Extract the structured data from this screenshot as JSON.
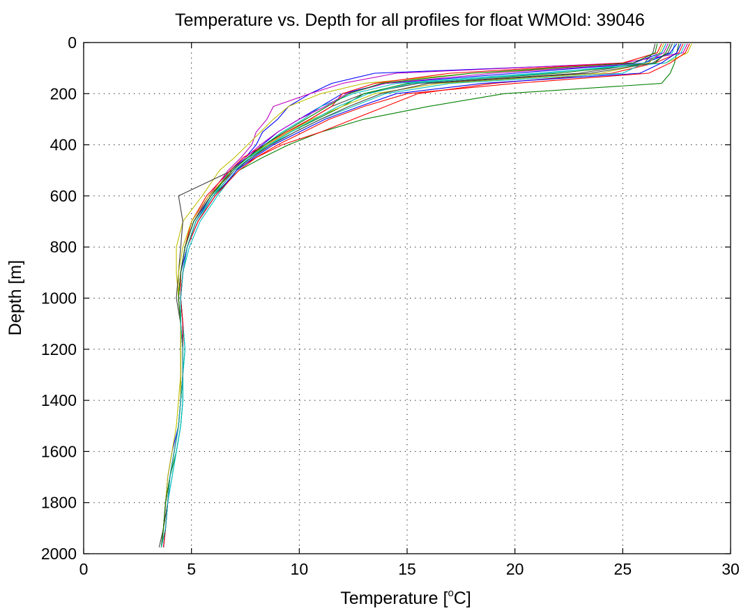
{
  "chart_data": {
    "type": "line",
    "title": "Temperature vs. Depth for all profiles for float WMOId: 39046",
    "xlabel": "Temperature [°C]",
    "xlabel_parts": {
      "main": "Temperature [",
      "superscript": "o",
      "unit": "C]"
    },
    "ylabel": "Depth [m]",
    "xlim": [
      0,
      30
    ],
    "ylim": [
      0,
      2000
    ],
    "y_reversed": true,
    "xticks": [
      0,
      5,
      10,
      15,
      20,
      25,
      30
    ],
    "yticks": [
      0,
      200,
      400,
      600,
      800,
      1000,
      1200,
      1400,
      1600,
      1800,
      2000
    ],
    "grid": true,
    "series_depths": [
      5,
      40,
      80,
      120,
      160,
      200,
      250,
      300,
      350,
      400,
      450,
      500,
      600,
      700,
      800,
      900,
      1000,
      1100,
      1200,
      1300,
      1400,
      1500,
      1600,
      1700,
      1800,
      1900,
      1975
    ],
    "series": [
      {
        "color": "#0000ff",
        "values": [
          27.0,
          26.8,
          25.5,
          13.5,
          11.5,
          10.5,
          9.5,
          9.0,
          8.3,
          8.0,
          7.5,
          6.8,
          5.9,
          5.2,
          4.8,
          4.5,
          4.4,
          4.5,
          4.6,
          4.6,
          4.5,
          4.4,
          4.1,
          3.9,
          3.8,
          3.7,
          3.6
        ]
      },
      {
        "color": "#008000",
        "values": [
          27.6,
          27.5,
          27.4,
          27.2,
          26.8,
          19.5,
          16.0,
          13.0,
          11.0,
          9.5,
          8.3,
          7.2,
          6.0,
          5.2,
          4.8,
          4.6,
          4.5,
          4.6,
          4.7,
          4.6,
          4.6,
          4.5,
          4.3,
          4.0,
          3.9,
          3.8,
          3.7
        ]
      },
      {
        "color": "#ff0000",
        "values": [
          27.8,
          27.6,
          26.5,
          24.5,
          19.0,
          15.5,
          14.0,
          12.5,
          11.0,
          9.2,
          8.0,
          7.0,
          5.8,
          5.0,
          4.7,
          4.5,
          4.5,
          4.6,
          4.6,
          4.6,
          4.5,
          4.4,
          4.2,
          4.0,
          3.8,
          3.7,
          3.6
        ]
      },
      {
        "color": "#00bfbf",
        "values": [
          27.4,
          27.3,
          26.0,
          25.0,
          17.0,
          14.0,
          12.5,
          11.0,
          9.8,
          8.6,
          7.6,
          6.8,
          6.0,
          5.3,
          4.8,
          4.6,
          4.5,
          4.6,
          4.7,
          4.6,
          4.6,
          4.5,
          4.3,
          4.1,
          3.9,
          3.8,
          3.7
        ]
      },
      {
        "color": "#bf00bf",
        "values": [
          28.0,
          27.8,
          25.0,
          14.5,
          12.0,
          10.5,
          8.8,
          8.5,
          8.0,
          7.8,
          7.3,
          6.7,
          5.8,
          5.1,
          4.7,
          4.5,
          4.4,
          4.5,
          4.6,
          4.6,
          4.5,
          4.4,
          4.2,
          4.0,
          3.8,
          3.7,
          3.6
        ]
      },
      {
        "color": "#bfbf00",
        "values": [
          28.2,
          28.0,
          27.0,
          18.0,
          13.0,
          11.0,
          9.5,
          8.8,
          8.2,
          7.6,
          7.0,
          6.3,
          5.5,
          4.6,
          4.3,
          4.3,
          4.4,
          4.5,
          4.5,
          4.5,
          4.4,
          4.3,
          4.1,
          3.9,
          3.8,
          3.7,
          3.6
        ]
      },
      {
        "color": "#404040",
        "values": [
          26.5,
          26.4,
          26.0,
          23.0,
          15.5,
          13.0,
          11.5,
          10.5,
          9.5,
          8.5,
          7.6,
          6.9,
          4.4,
          4.6,
          4.5,
          4.4,
          4.3,
          4.5,
          4.5,
          4.5,
          4.5,
          4.4,
          4.2,
          4.0,
          3.9,
          3.7,
          3.5
        ]
      },
      {
        "color": "#0000ff",
        "values": [
          27.5,
          27.2,
          26.0,
          20.0,
          14.0,
          12.0,
          11.0,
          10.0,
          9.0,
          8.3,
          7.6,
          6.9,
          5.9,
          5.1,
          4.7,
          4.5,
          4.4,
          4.5,
          4.6,
          4.6,
          4.5,
          4.4,
          4.2,
          4.0,
          3.8,
          3.7,
          3.6
        ]
      },
      {
        "color": "#008000",
        "values": [
          27.2,
          27.0,
          26.5,
          22.0,
          15.0,
          13.0,
          12.0,
          10.8,
          9.6,
          8.6,
          7.8,
          7.0,
          6.0,
          5.2,
          4.8,
          4.6,
          4.5,
          4.5,
          4.6,
          4.6,
          4.5,
          4.4,
          4.2,
          4.0,
          3.9,
          3.8,
          3.7
        ]
      },
      {
        "color": "#ff0000",
        "values": [
          26.8,
          26.6,
          25.0,
          17.0,
          13.5,
          12.0,
          11.5,
          10.5,
          9.4,
          8.4,
          7.4,
          6.8,
          5.7,
          5.0,
          4.7,
          4.5,
          4.4,
          4.5,
          4.6,
          4.6,
          4.5,
          4.4,
          4.2,
          4.0,
          3.8,
          3.7,
          3.6
        ]
      },
      {
        "color": "#00bfbf",
        "values": [
          27.9,
          27.7,
          27.0,
          21.0,
          14.5,
          12.5,
          11.0,
          10.2,
          9.2,
          8.4,
          7.7,
          7.1,
          6.2,
          5.4,
          4.9,
          4.6,
          4.5,
          4.6,
          4.7,
          4.6,
          4.6,
          4.5,
          4.3,
          4.1,
          3.9,
          3.8,
          3.7
        ]
      },
      {
        "color": "#bf00bf",
        "values": [
          27.1,
          26.9,
          26.0,
          19.0,
          14.0,
          12.2,
          11.2,
          10.0,
          9.0,
          8.2,
          7.5,
          6.9,
          5.9,
          5.1,
          4.7,
          4.5,
          4.4,
          4.5,
          4.6,
          4.6,
          4.5,
          4.4,
          4.2,
          4.0,
          3.8,
          3.7,
          3.6
        ]
      },
      {
        "color": "#bfbf00",
        "values": [
          26.9,
          26.7,
          26.2,
          24.0,
          16.5,
          13.5,
          12.0,
          10.6,
          9.5,
          8.5,
          7.6,
          6.9,
          5.8,
          5.0,
          4.6,
          4.4,
          4.4,
          4.5,
          4.5,
          4.5,
          4.5,
          4.4,
          4.2,
          4.0,
          3.8,
          3.7,
          3.6
        ]
      },
      {
        "color": "#404040",
        "values": [
          27.3,
          27.1,
          26.4,
          23.5,
          16.0,
          13.8,
          12.3,
          11.0,
          9.8,
          8.7,
          7.8,
          7.0,
          6.0,
          5.2,
          4.8,
          4.6,
          4.5,
          4.6,
          4.6,
          4.6,
          4.5,
          4.4,
          4.2,
          4.0,
          3.9,
          3.8,
          3.6
        ]
      },
      {
        "color": "#0000ff",
        "values": [
          27.7,
          27.5,
          26.8,
          25.8,
          18.5,
          14.5,
          12.8,
          11.2,
          10.0,
          8.8,
          7.9,
          7.1,
          6.1,
          5.3,
          4.8,
          4.6,
          4.5,
          4.6,
          4.6,
          4.6,
          4.5,
          4.4,
          4.2,
          4.0,
          3.9,
          3.8,
          3.7
        ]
      },
      {
        "color": "#008000",
        "values": [
          26.6,
          26.5,
          25.5,
          18.0,
          13.8,
          12.3,
          11.3,
          10.3,
          9.3,
          8.4,
          7.6,
          6.9,
          5.9,
          5.1,
          4.7,
          4.5,
          4.4,
          4.5,
          4.6,
          4.6,
          4.5,
          4.4,
          4.2,
          4.0,
          3.8,
          3.7,
          3.6
        ]
      },
      {
        "color": "#ff0000",
        "values": [
          28.1,
          27.9,
          27.2,
          26.2,
          20.0,
          15.0,
          13.0,
          11.4,
          10.2,
          9.0,
          8.0,
          7.2,
          6.1,
          5.3,
          4.8,
          4.6,
          4.5,
          4.6,
          4.6,
          4.6,
          4.5,
          4.4,
          4.2,
          4.0,
          3.9,
          3.8,
          3.7
        ]
      },
      {
        "color": "#00bfbf",
        "values": [
          27.0,
          26.8,
          26.0,
          21.5,
          15.2,
          13.2,
          11.8,
          10.7,
          9.6,
          8.6,
          7.7,
          7.0,
          6.0,
          5.2,
          4.8,
          4.6,
          4.5,
          4.5,
          4.6,
          4.6,
          4.5,
          4.4,
          4.2,
          4.0,
          3.9,
          3.8,
          3.6
        ]
      }
    ]
  }
}
